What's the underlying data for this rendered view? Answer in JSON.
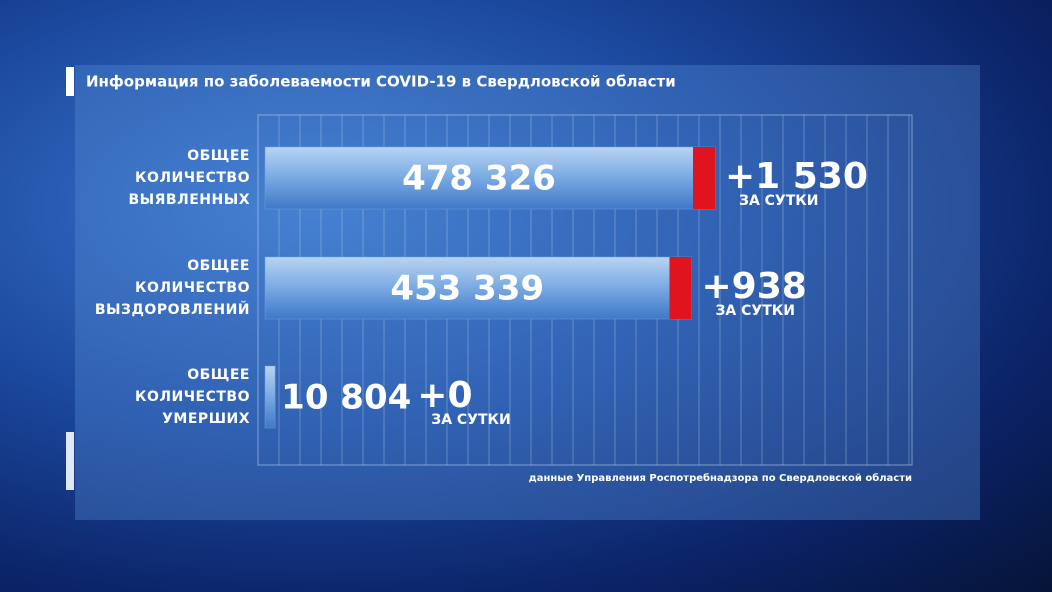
{
  "chart_data": {
    "type": "bar",
    "title": "Информация по заболеваемости COVID-19 в Свердловской области",
    "categories": [
      "ОБЩЕЕ КОЛИЧЕСТВО ВЫЯВЛЕННЫХ",
      "ОБЩЕЕ КОЛИЧЕСТВО ВЫЗДОРОВЛЕНИЙ",
      "ОБЩЕЕ КОЛИЧЕСТВО УМЕРШИХ"
    ],
    "values": [
      478326,
      453339,
      10804
    ],
    "value_labels": [
      "478 326",
      "453 339",
      "10 804"
    ],
    "deltas": [
      1530,
      938,
      0
    ],
    "delta_labels": [
      "+1 530",
      "+938",
      "+0"
    ],
    "delta_caption": "ЗА СУТКИ",
    "color": "#6f9fd6",
    "cap_color": "#e0141e",
    "source": "данные Управления Роспотребнадзора по Свердловской области"
  }
}
